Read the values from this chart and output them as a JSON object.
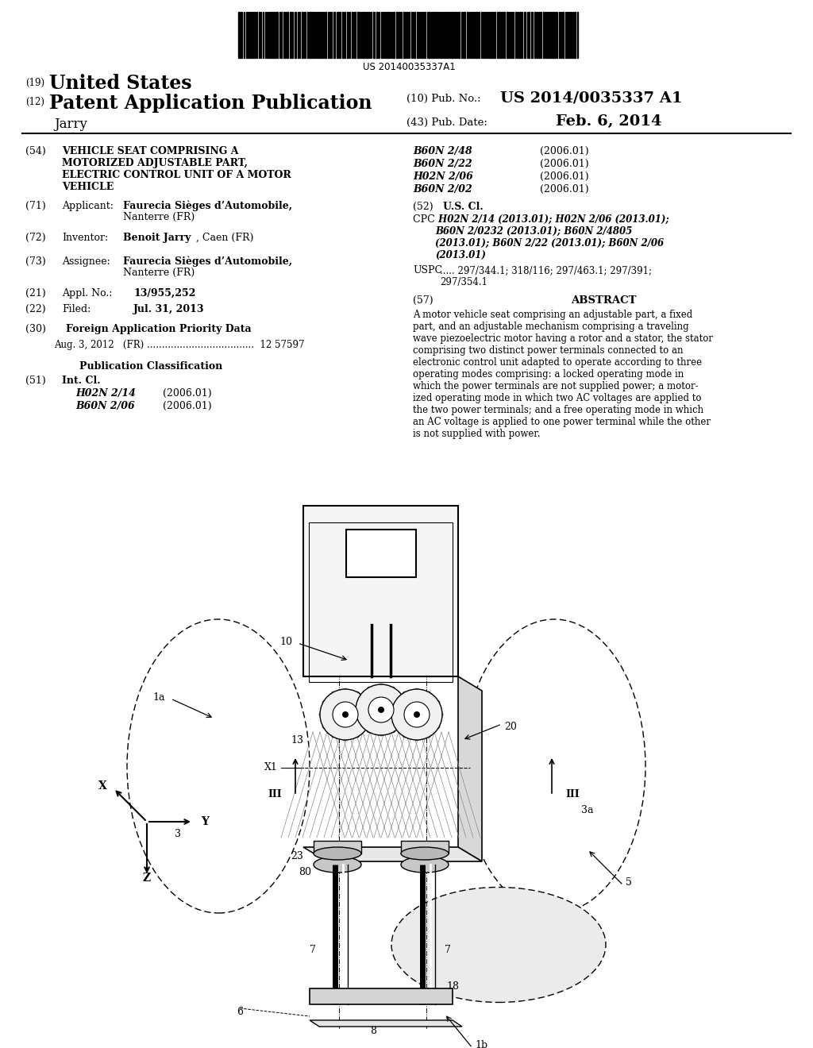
{
  "background_color": "#ffffff",
  "barcode_text": "US 20140035337A1",
  "header": {
    "country_num": "(19)",
    "country": "United States",
    "type_num": "(12)",
    "type": "Patent Application Publication",
    "pub_num_label": "(10) Pub. No.:",
    "pub_num": "US 2014/0035337 A1",
    "inventor_name": "Jarry",
    "pub_date_label": "(43) Pub. Date:",
    "pub_date": "Feb. 6, 2014"
  },
  "left_col": {
    "title_num": "(54)",
    "title": "VEHICLE SEAT COMPRISING A\nMOTORIZED ADJUSTABLE PART,\nELECTRIC CONTROL UNIT OF A MOTOR\nVEHICLE",
    "applicant_num": "(71)",
    "applicant_label": "Applicant:",
    "applicant_bold": "Faurecia Sièges d’Automobile,",
    "applicant_plain": "Nanterre (FR)",
    "inventor_num": "(72)",
    "inventor_label": "Inventor:",
    "inventor_bold": "Benoit Jarry",
    "inventor_plain": ", Caen (FR)",
    "assignee_num": "(73)",
    "assignee_label": "Assignee:",
    "assignee_bold": "Faurecia Sièges d’Automobile,",
    "assignee_plain": "Nanterre (FR)",
    "appl_num": "(21)",
    "appl_label": "Appl. No.:",
    "appl_no": "13/955,252",
    "filed_num": "(22)",
    "filed_label": "Filed:",
    "filed_date": "Jul. 31, 2013",
    "foreign_num": "(30)",
    "foreign_title": "Foreign Application Priority Data",
    "foreign_entry": "Aug. 3, 2012   (FR) ....................................  12 57597",
    "pub_class_title": "Publication Classification",
    "int_cl_num": "(51)",
    "int_cl_label": "Int. Cl.",
    "int_cl_entries": [
      [
        "H02N 2/14",
        "(2006.01)"
      ],
      [
        "B60N 2/06",
        "(2006.01)"
      ]
    ]
  },
  "right_col": {
    "ipc_entries": [
      [
        "B60N 2/48",
        "(2006.01)"
      ],
      [
        "B60N 2/22",
        "(2006.01)"
      ],
      [
        "H02N 2/06",
        "(2006.01)"
      ],
      [
        "B60N 2/02",
        "(2006.01)"
      ]
    ],
    "us_cl_num": "(52)",
    "us_cl_label": "U.S. Cl.",
    "cpc_label": "CPC .",
    "cpc_lines": [
      " H02N 2/14 (2013.01); H02N 2/06 (2013.01);",
      "B60N 2/0232 (2013.01); B60N 2/4805",
      "(2013.01); B60N 2/22 (2013.01); B60N 2/06",
      "(2013.01)"
    ],
    "uspc_label": "USPC",
    "uspc_lines": [
      "..... 297/344.1; 318/116; 297/463.1; 297/391;",
      "297/354.1"
    ],
    "abstract_num": "(57)",
    "abstract_title": "ABSTRACT",
    "abstract_lines": [
      "A motor vehicle seat comprising an adjustable part, a fixed",
      "part, and an adjustable mechanism comprising a traveling",
      "wave piezoelectric motor having a rotor and a stator, the stator",
      "comprising two distinct power terminals connected to an",
      "electronic control unit adapted to operate according to three",
      "operating modes comprising: a locked operating mode in",
      "which the power terminals are not supplied power; a motor-",
      "ized operating mode in which two AC voltages are applied to",
      "the two power terminals; and a free operating mode in which",
      "an AC voltage is applied to one power terminal while the other",
      "is not supplied with power."
    ]
  }
}
